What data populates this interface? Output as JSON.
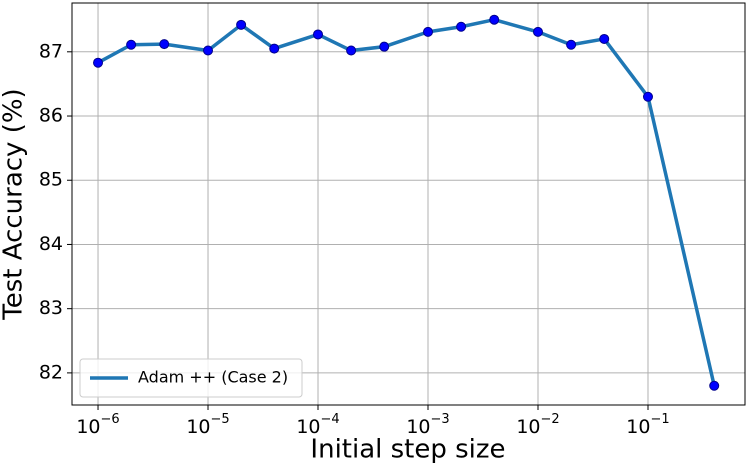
{
  "chart_data": {
    "type": "line",
    "xlabel": "Initial step size",
    "ylabel": "Test Accuracy (%)",
    "x": [
      1e-06,
      2e-06,
      4e-06,
      1e-05,
      2e-05,
      4e-05,
      0.0001,
      0.0002,
      0.0004,
      0.001,
      0.002,
      0.004,
      0.01,
      0.02,
      0.04,
      0.1,
      0.4
    ],
    "series": [
      {
        "name": "Adam ++ (Case 2)",
        "color": "#1f77b4",
        "marker_color": "#0000ff",
        "values": [
          86.83,
          87.11,
          87.12,
          87.02,
          87.42,
          87.05,
          87.27,
          87.02,
          87.08,
          87.31,
          87.39,
          87.5,
          87.31,
          87.11,
          87.2,
          86.3,
          81.8
        ]
      }
    ],
    "xscale": "log",
    "xlim": [
      5.8e-07,
      0.762
    ],
    "ylim": [
      81.5,
      87.76
    ],
    "xticks": [
      {
        "value": 1e-06,
        "label": "10^−6"
      },
      {
        "value": 1e-05,
        "label": "10^−5"
      },
      {
        "value": 0.0001,
        "label": "10^−4"
      },
      {
        "value": 0.001,
        "label": "10^−3"
      },
      {
        "value": 0.01,
        "label": "10^−2"
      },
      {
        "value": 0.1,
        "label": "10^−1"
      }
    ],
    "yticks": [
      82,
      83,
      84,
      85,
      86,
      87
    ],
    "grid": true,
    "legend": "lower left"
  }
}
